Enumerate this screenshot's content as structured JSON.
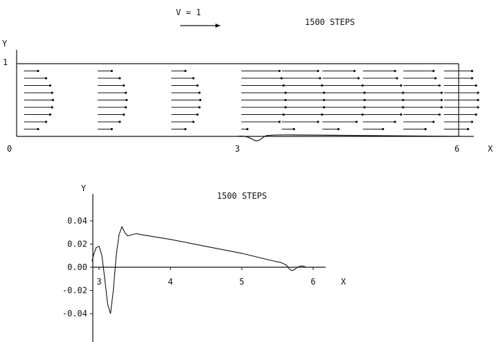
{
  "chart_data": [
    {
      "type": "quiver",
      "title": "1500 STEPS",
      "legend_arrow_label": "V = 1",
      "xlabel": "X",
      "ylabel": "Y",
      "xlim": [
        0,
        6
      ],
      "ylim": [
        0,
        1
      ],
      "x_ticks": [
        "0",
        "3",
        "6"
      ],
      "y_ticks": [
        "1"
      ],
      "arrow_rows_y": [
        0.1,
        0.2,
        0.3,
        0.4,
        0.5,
        0.6,
        0.7,
        0.8,
        0.9
      ],
      "columns": [
        {
          "x": 0.1,
          "u": [
            0.35,
            0.55,
            0.65,
            0.7,
            0.72,
            0.7,
            0.65,
            0.55,
            0.35
          ]
        },
        {
          "x": 1.1,
          "u": [
            0.35,
            0.55,
            0.65,
            0.7,
            0.72,
            0.7,
            0.65,
            0.55,
            0.35
          ]
        },
        {
          "x": 2.1,
          "u": [
            0.35,
            0.55,
            0.65,
            0.7,
            0.72,
            0.7,
            0.65,
            0.55,
            0.35
          ]
        },
        {
          "x": 3.05,
          "u": [
            0.15,
            0.95,
            1.05,
            1.1,
            1.1,
            1.1,
            1.05,
            1.0,
            0.95
          ]
        },
        {
          "x": 3.6,
          "u": [
            0.3,
            0.9,
            1.0,
            1.05,
            1.05,
            1.05,
            1.0,
            0.95,
            0.9
          ]
        },
        {
          "x": 4.15,
          "u": [
            0.4,
            0.85,
            1.0,
            1.05,
            1.05,
            1.05,
            1.0,
            0.9,
            0.8
          ]
        },
        {
          "x": 4.7,
          "u": [
            0.5,
            0.8,
            0.95,
            1.0,
            1.0,
            1.0,
            0.95,
            0.85,
            0.8
          ]
        },
        {
          "x": 5.25,
          "u": [
            0.55,
            0.75,
            0.9,
            0.95,
            0.95,
            0.95,
            0.9,
            0.8,
            0.75
          ]
        },
        {
          "x": 5.8,
          "u": [
            0.6,
            0.7,
            0.8,
            0.85,
            0.85,
            0.85,
            0.8,
            0.7,
            0.7
          ]
        }
      ]
    },
    {
      "type": "line",
      "title": "1500 STEPS",
      "xlabel": "X",
      "ylabel": "Y",
      "xlim": [
        2.9,
        6.2
      ],
      "ylim": [
        -0.045,
        0.045
      ],
      "x_ticks": [
        "3",
        "4",
        "5",
        "6"
      ],
      "y_ticks": [
        "0.04",
        "0.02",
        "0.00",
        "-0.02",
        "-0.04"
      ],
      "series": [
        {
          "x": [
            2.9,
            2.93,
            2.96,
            3.0,
            3.04,
            3.08,
            3.12,
            3.16,
            3.2,
            3.24,
            3.28,
            3.32,
            3.36,
            3.4,
            3.46,
            3.52,
            3.6,
            3.8,
            4.0,
            4.5,
            5.0,
            5.4,
            5.55,
            5.62,
            5.66,
            5.7,
            5.74,
            5.78,
            5.82,
            5.86,
            5.9,
            5.95,
            6.0
          ],
          "y": [
            0.005,
            0.012,
            0.017,
            0.018,
            0.01,
            -0.01,
            -0.032,
            -0.04,
            -0.02,
            0.01,
            0.028,
            0.035,
            0.03,
            0.027,
            0.028,
            0.029,
            0.028,
            0.026,
            0.024,
            0.018,
            0.012,
            0.006,
            0.004,
            0.002,
            -0.001,
            -0.003,
            -0.002,
            0.0,
            0.001,
            0.001,
            0.0,
            0.0,
            0.0
          ]
        }
      ]
    }
  ]
}
